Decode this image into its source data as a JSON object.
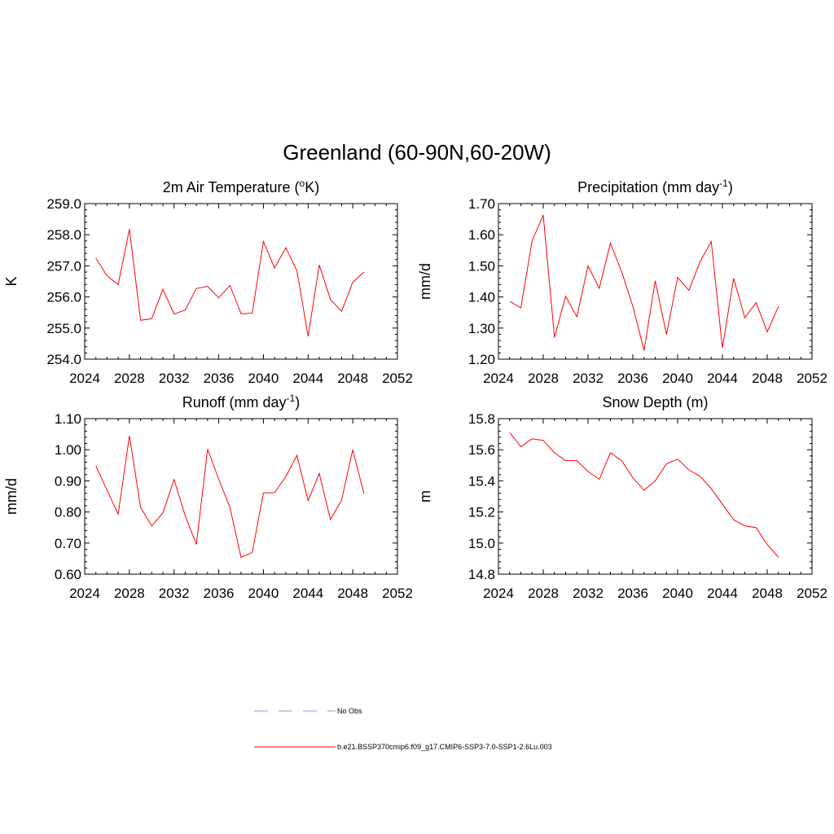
{
  "title": "Greenland (60-90N,60-20W)",
  "legend": [
    {
      "label": "No Obs",
      "color": "#9999dd",
      "dash": true
    },
    {
      "label": "b.e21.BSSP370cmip6.f09_g17.CMIP6-SSP3-7.0-SSP1-2.6Lu.003",
      "color": "#ff0000",
      "dash": false
    }
  ],
  "chart_data": [
    {
      "type": "line",
      "title_main": "2m Air Temperature (",
      "title_sup": "o",
      "title_after": "K)",
      "title_tail": "",
      "ylabel": "K",
      "xlim": [
        2024,
        2052
      ],
      "ylim": [
        254.0,
        259.0
      ],
      "xticks": [
        2024,
        2028,
        2032,
        2036,
        2040,
        2044,
        2048,
        2052
      ],
      "yticks": [
        "254.0",
        "255.0",
        "256.0",
        "257.0",
        "258.0",
        "259.0"
      ],
      "color": "#ff0000",
      "x": [
        2025,
        2026,
        2027,
        2028,
        2029,
        2030,
        2031,
        2032,
        2033,
        2034,
        2035,
        2036,
        2037,
        2038,
        2039,
        2040,
        2041,
        2042,
        2043,
        2044,
        2045,
        2046,
        2047,
        2048,
        2049
      ],
      "y": [
        257.25,
        256.68,
        256.4,
        258.18,
        255.25,
        255.3,
        256.25,
        255.45,
        255.58,
        256.27,
        256.34,
        255.97,
        256.37,
        255.46,
        255.48,
        257.78,
        256.93,
        257.58,
        256.84,
        254.73,
        257.03,
        255.92,
        255.54,
        256.47,
        256.8
      ]
    },
    {
      "type": "line",
      "title_main": "Precipitation (mm day",
      "title_sup": "-1",
      "title_after": ")",
      "title_tail": "",
      "ylabel": "mm/d",
      "xlim": [
        2024,
        2052
      ],
      "ylim": [
        1.2,
        1.7
      ],
      "xticks": [
        2024,
        2028,
        2032,
        2036,
        2040,
        2044,
        2048,
        2052
      ],
      "yticks": [
        "1.20",
        "1.30",
        "1.40",
        "1.50",
        "1.60",
        "1.70"
      ],
      "color": "#ff0000",
      "x": [
        2025,
        2026,
        2027,
        2028,
        2029,
        2030,
        2031,
        2032,
        2033,
        2034,
        2035,
        2036,
        2037,
        2038,
        2039,
        2040,
        2041,
        2042,
        2043,
        2044,
        2045,
        2046,
        2047,
        2048,
        2049
      ],
      "y": [
        1.386,
        1.365,
        1.58,
        1.663,
        1.27,
        1.402,
        1.336,
        1.5,
        1.428,
        1.573,
        1.481,
        1.37,
        1.228,
        1.452,
        1.279,
        1.463,
        1.421,
        1.513,
        1.578,
        1.236,
        1.46,
        1.333,
        1.382,
        1.288,
        1.37
      ]
    },
    {
      "type": "line",
      "title_main": "Runoff (mm day",
      "title_sup": "-1",
      "title_after": ")",
      "title_tail": "",
      "ylabel": "mm/d",
      "xlim": [
        2024,
        2052
      ],
      "ylim": [
        0.6,
        1.1
      ],
      "xticks": [
        2024,
        2028,
        2032,
        2036,
        2040,
        2044,
        2048,
        2052
      ],
      "yticks": [
        "0.60",
        "0.70",
        "0.80",
        "0.90",
        "1.00",
        "1.10"
      ],
      "color": "#ff0000",
      "x": [
        2025,
        2026,
        2027,
        2028,
        2029,
        2030,
        2031,
        2032,
        2033,
        2034,
        2035,
        2036,
        2037,
        2038,
        2039,
        2040,
        2041,
        2042,
        2043,
        2044,
        2045,
        2046,
        2047,
        2048,
        2049
      ],
      "y": [
        0.948,
        0.87,
        0.793,
        1.045,
        0.815,
        0.755,
        0.797,
        0.904,
        0.788,
        0.696,
        1.002,
        0.905,
        0.815,
        0.654,
        0.67,
        0.861,
        0.862,
        0.914,
        0.982,
        0.836,
        0.924,
        0.776,
        0.838,
        1.0,
        0.858
      ]
    },
    {
      "type": "line",
      "title_main": "Snow Depth (m)",
      "title_sup": "",
      "title_after": "",
      "title_tail": "",
      "ylabel": "m",
      "xlim": [
        2024,
        2052
      ],
      "ylim": [
        14.8,
        15.8
      ],
      "xticks": [
        2024,
        2028,
        2032,
        2036,
        2040,
        2044,
        2048,
        2052
      ],
      "yticks": [
        "14.8",
        "15.0",
        "15.2",
        "15.4",
        "15.6",
        "15.8"
      ],
      "color": "#ff0000",
      "x": [
        2025,
        2026,
        2027,
        2028,
        2029,
        2030,
        2031,
        2032,
        2033,
        2034,
        2035,
        2036,
        2037,
        2038,
        2039,
        2040,
        2041,
        2042,
        2043,
        2044,
        2045,
        2046,
        2047,
        2048,
        2049
      ],
      "y": [
        15.71,
        15.62,
        15.67,
        15.66,
        15.58,
        15.53,
        15.53,
        15.46,
        15.41,
        15.58,
        15.53,
        15.42,
        15.34,
        15.4,
        15.51,
        15.54,
        15.47,
        15.43,
        15.35,
        15.25,
        15.15,
        15.11,
        15.1,
        14.99,
        14.91
      ]
    }
  ]
}
